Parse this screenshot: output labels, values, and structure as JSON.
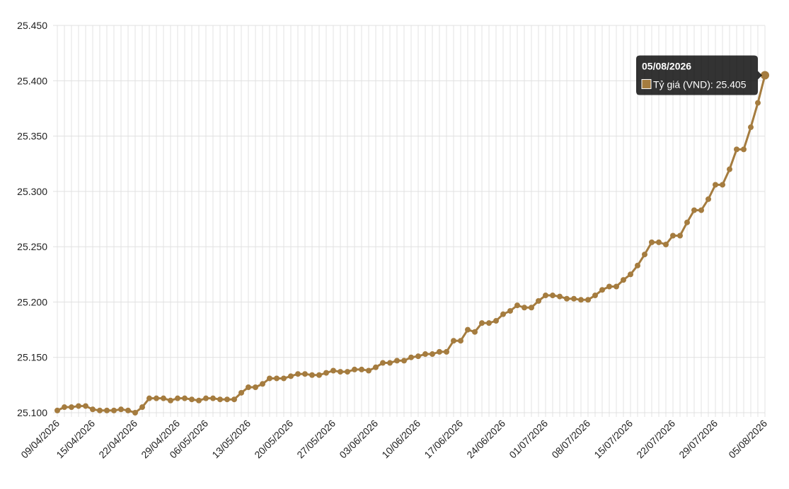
{
  "chart_data": {
    "type": "line",
    "categories": [
      "09/04/2026",
      null,
      null,
      null,
      null,
      "15/04/2026",
      null,
      null,
      null,
      null,
      null,
      "22/04/2026",
      null,
      null,
      null,
      null,
      null,
      "29/04/2026",
      null,
      null,
      null,
      "06/05/2026",
      null,
      null,
      null,
      null,
      null,
      "13/05/2026",
      null,
      null,
      null,
      null,
      null,
      "20/05/2026",
      null,
      null,
      null,
      null,
      null,
      "27/05/2026",
      null,
      null,
      null,
      null,
      null,
      "03/06/2026",
      null,
      null,
      null,
      null,
      null,
      "10/06/2026",
      null,
      null,
      null,
      null,
      null,
      "17/06/2026",
      null,
      null,
      null,
      null,
      null,
      "24/06/2026",
      null,
      null,
      null,
      null,
      null,
      "01/07/2026",
      null,
      null,
      null,
      null,
      null,
      "08/07/2026",
      null,
      null,
      null,
      null,
      null,
      "15/07/2026",
      null,
      null,
      null,
      null,
      null,
      "22/07/2026",
      null,
      null,
      null,
      null,
      null,
      "29/07/2026",
      null,
      null,
      null,
      null,
      null,
      null,
      "05/08/2026"
    ],
    "series": [
      {
        "name": "Tỷ giá (VND)",
        "color": "#a57c3f",
        "values": [
          25102,
          25105,
          25105,
          25106,
          25106,
          25103,
          25102,
          25102,
          25102,
          25103,
          25102,
          25100,
          25105,
          25113,
          25113,
          25113,
          25111,
          25113,
          25113,
          25112,
          25111,
          25113,
          25113,
          25112,
          25112,
          25112,
          25118,
          25123,
          25123,
          25126,
          25131,
          25131,
          25131,
          25133,
          25135,
          25135,
          25134,
          25134,
          25136,
          25138,
          25137,
          25137,
          25139,
          25139,
          25138,
          25141,
          25145,
          25145,
          25147,
          25147,
          25150,
          25151,
          25153,
          25153,
          25155,
          25155,
          25165,
          25165,
          25175,
          25173,
          25181,
          25181,
          25183,
          25189,
          25192,
          25197,
          25195,
          25195,
          25201,
          25206,
          25206,
          25205,
          25203,
          25203,
          25202,
          25202,
          25206,
          25211,
          25214,
          25214,
          25220,
          25225,
          25233,
          25243,
          25254,
          25254,
          25252,
          25260,
          25260,
          25272,
          25283,
          25283,
          25293,
          25306,
          25306,
          25320,
          25338,
          25338,
          25358,
          25380,
          25405
        ],
        "value_labels": [
          null,
          null,
          null,
          null,
          null,
          null,
          null,
          null,
          null,
          null,
          null,
          null,
          null,
          null,
          null,
          null,
          null,
          null,
          null,
          null,
          null,
          null,
          null,
          null,
          null,
          null,
          null,
          null,
          null,
          null,
          null,
          null,
          null,
          null,
          null,
          null,
          null,
          null,
          null,
          null,
          null,
          null,
          null,
          null,
          null,
          null,
          null,
          null,
          null,
          null,
          null,
          null,
          null,
          null,
          null,
          null,
          null,
          null,
          null,
          null,
          null,
          null,
          null,
          null,
          null,
          null,
          null,
          null,
          null,
          null,
          null,
          null,
          null,
          null,
          null,
          null,
          null,
          null,
          null,
          null,
          null,
          null,
          null,
          null,
          null,
          null,
          null,
          null,
          null,
          null,
          null,
          null,
          null,
          null,
          null,
          null,
          null,
          null,
          null,
          null,
          "25.405"
        ]
      }
    ],
    "ylim": [
      25100,
      25450
    ],
    "yticks": [
      {
        "value": 25100,
        "label": "25.100"
      },
      {
        "value": 25150,
        "label": "25.150"
      },
      {
        "value": 25200,
        "label": "25.200"
      },
      {
        "value": 25250,
        "label": "25.250"
      },
      {
        "value": 25300,
        "label": "25.300"
      },
      {
        "value": 25350,
        "label": "25.350"
      },
      {
        "value": 25400,
        "label": "25.400"
      },
      {
        "value": 25450,
        "label": "25.450"
      }
    ],
    "grid": true
  }
}
